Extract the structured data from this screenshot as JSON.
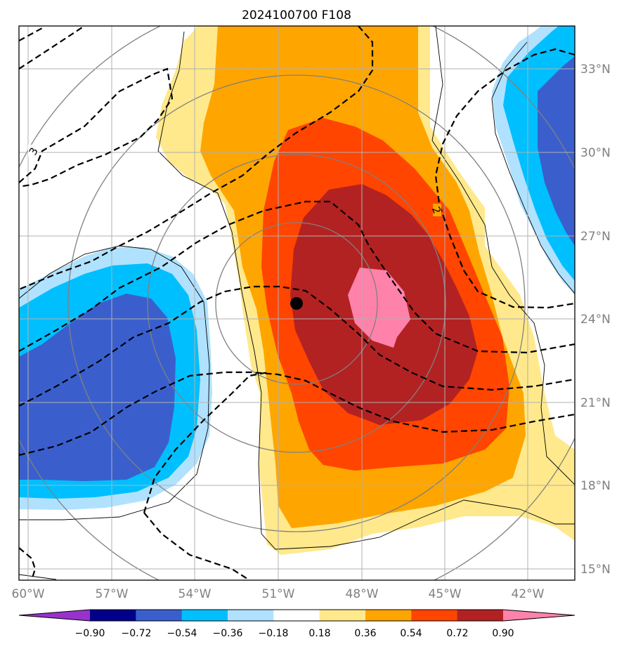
{
  "title": "2024100700 F108",
  "lon_labels": [
    "60°W",
    "57°W",
    "54°W",
    "51°W",
    "48°W",
    "45°W",
    "42°W"
  ],
  "lat_labels": [
    "33°N",
    "30°N",
    "27°N",
    "24°N",
    "21°N",
    "18°N",
    "15°N"
  ],
  "contour_labels": [
    "3",
    "2"
  ],
  "colorbar": {
    "tick_labels": [
      "−0.90",
      "−0.72",
      "−0.54",
      "−0.36",
      "−0.18",
      "0.18",
      "0.36",
      "0.54",
      "0.72",
      "0.90"
    ],
    "colors": [
      "#9932cc",
      "#00008b",
      "#3a5fcd",
      "#00bfff",
      "#b0e2ff",
      "#ffffff",
      "#ffe98c",
      "#ffa500",
      "#ff4500",
      "#b22222",
      "#ff82ab"
    ]
  },
  "colors": {
    "light_yellow": "#ffe98c",
    "orange": "#ffa500",
    "orange_red": "#ff4500",
    "dark_red": "#b22222",
    "pink": "#ff82ab",
    "light_blue": "#b0e2ff",
    "cyan": "#00bfff",
    "royal_blue": "#3a5fcd"
  },
  "storm_marker": "black-dot-center"
}
